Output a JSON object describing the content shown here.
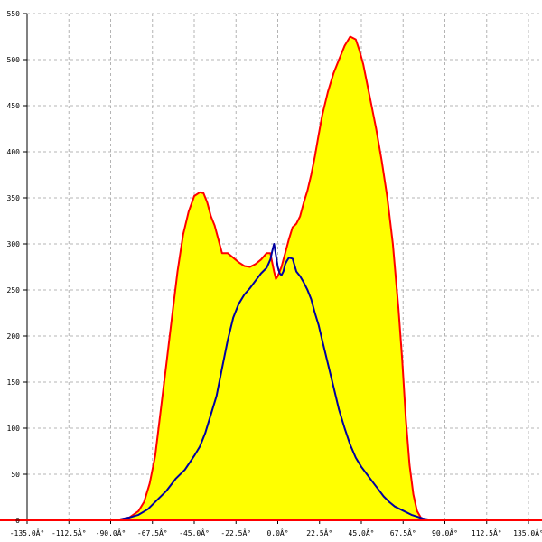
{
  "chart_data": {
    "type": "area",
    "title": "",
    "xlabel": "",
    "ylabel": "",
    "xlim": [
      -135,
      135
    ],
    "ylim": [
      0,
      550
    ],
    "grid": true,
    "legend": "none",
    "x_ticks": [
      {
        "value": -135,
        "label": "-135.0Â°"
      },
      {
        "value": -112.5,
        "label": "-112.5Â°"
      },
      {
        "value": -90,
        "label": "-90.0Â°"
      },
      {
        "value": -67.5,
        "label": "-67.5Â°"
      },
      {
        "value": -45,
        "label": "-45.0Â°"
      },
      {
        "value": -22.5,
        "label": "-22.5Â°"
      },
      {
        "value": 0,
        "label": "0.0Â°"
      },
      {
        "value": 22.5,
        "label": "22.5Â°"
      },
      {
        "value": 45,
        "label": "45.0Â°"
      },
      {
        "value": 67.5,
        "label": "67.5Â°"
      },
      {
        "value": 90,
        "label": "90.0Â°"
      },
      {
        "value": 112.5,
        "label": "112.5Â°"
      },
      {
        "value": 135,
        "label": "135.0Â°"
      }
    ],
    "y_ticks": [
      {
        "value": 0,
        "label": "0"
      },
      {
        "value": 50,
        "label": "50"
      },
      {
        "value": 100,
        "label": "100"
      },
      {
        "value": 150,
        "label": "150"
      },
      {
        "value": 200,
        "label": "200"
      },
      {
        "value": 250,
        "label": "250"
      },
      {
        "value": 300,
        "label": "300"
      },
      {
        "value": 350,
        "label": "350"
      },
      {
        "value": 400,
        "label": "400"
      },
      {
        "value": 450,
        "label": "450"
      },
      {
        "value": 500,
        "label": "500"
      },
      {
        "value": 550,
        "label": "550"
      }
    ],
    "series": [
      {
        "style": "filled-area",
        "fill_color": "#ffff00",
        "line_color": "#ff0000",
        "x": [
          -90,
          -85,
          -80,
          -75,
          -72,
          -69,
          -66,
          -63,
          -60,
          -57,
          -54,
          -51,
          -48,
          -45,
          -42,
          -40,
          -38,
          -36,
          -34,
          -32,
          -30,
          -27,
          -24,
          -21,
          -18,
          -15,
          -12,
          -9,
          -6,
          -4,
          -3,
          -2,
          -1,
          0,
          2,
          4,
          6,
          8,
          10,
          12,
          14,
          16,
          18,
          20,
          22,
          24,
          27,
          30,
          33,
          36,
          39,
          42,
          44,
          46,
          48,
          50,
          53,
          56,
          59,
          62,
          65,
          67,
          69,
          71,
          73,
          75,
          77,
          79,
          81,
          83,
          85,
          88,
          90
        ],
        "y": [
          0,
          1,
          3,
          10,
          20,
          40,
          70,
          120,
          170,
          220,
          270,
          310,
          335,
          352,
          356,
          355,
          345,
          330,
          320,
          305,
          290,
          290,
          285,
          280,
          276,
          275,
          278,
          283,
          290,
          290,
          280,
          270,
          262,
          265,
          275,
          290,
          305,
          318,
          322,
          330,
          345,
          358,
          375,
          395,
          418,
          440,
          465,
          485,
          500,
          515,
          525,
          522,
          510,
          495,
          475,
          455,
          425,
          390,
          350,
          300,
          230,
          175,
          110,
          60,
          28,
          10,
          3,
          1,
          0,
          0,
          0,
          0,
          0
        ]
      },
      {
        "style": "line",
        "line_color": "#0000a0",
        "x": [
          -90,
          -85,
          -80,
          -75,
          -70,
          -65,
          -60,
          -55,
          -50,
          -45,
          -42,
          -39,
          -36,
          -33,
          -30,
          -27,
          -24,
          -21,
          -18,
          -15,
          -12,
          -9,
          -6,
          -4,
          -3,
          -2,
          -1,
          0,
          1,
          2,
          3,
          4,
          5,
          6,
          8,
          10,
          12,
          14,
          16,
          18,
          20,
          22,
          24,
          27,
          30,
          33,
          36,
          39,
          42,
          45,
          48,
          51,
          54,
          57,
          60,
          63,
          66,
          69,
          72,
          75,
          78,
          81,
          84,
          87,
          90
        ],
        "y": [
          0,
          1,
          3,
          6,
          12,
          22,
          32,
          45,
          55,
          70,
          80,
          95,
          115,
          135,
          165,
          195,
          220,
          235,
          245,
          252,
          260,
          268,
          274,
          283,
          292,
          300,
          288,
          275,
          268,
          266,
          270,
          278,
          282,
          285,
          284,
          270,
          265,
          258,
          250,
          240,
          225,
          212,
          195,
          170,
          145,
          120,
          100,
          82,
          68,
          58,
          50,
          42,
          34,
          26,
          20,
          15,
          12,
          9,
          6,
          4,
          2,
          1,
          0,
          0,
          0
        ]
      }
    ]
  }
}
